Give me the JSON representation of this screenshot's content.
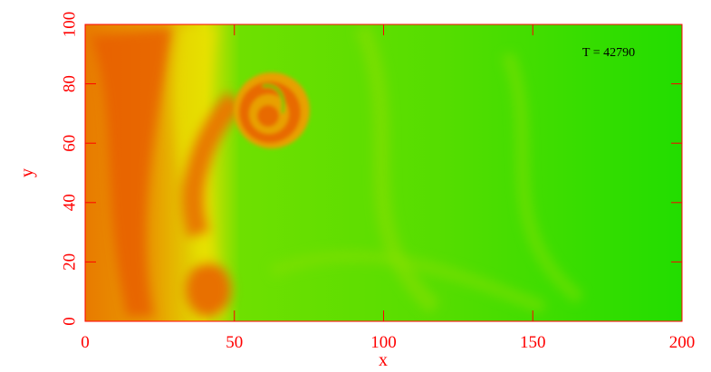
{
  "chart_data": {
    "type": "image",
    "annotation": "T = 42790",
    "xlabel": "x",
    "ylabel": "y",
    "xlim": [
      0,
      200
    ],
    "ylim": [
      0,
      100
    ],
    "xticks": [
      0,
      50,
      100,
      150,
      200
    ],
    "yticks": [
      0,
      20,
      40,
      60,
      80,
      100
    ],
    "axis_color": "#ff0000"
  }
}
